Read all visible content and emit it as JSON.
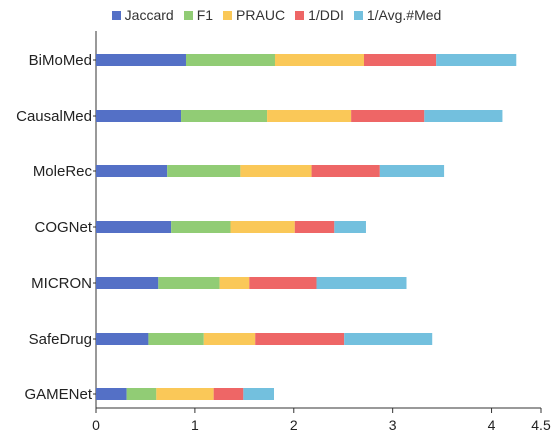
{
  "chart_data": {
    "type": "bar",
    "orientation": "horizontal",
    "stacked": true,
    "categories": [
      "BiMoMed",
      "CausalMed",
      "MoleRec",
      "COGNet",
      "MICRON",
      "SafeDrug",
      "GAMENet"
    ],
    "series": [
      {
        "name": "Jaccard",
        "color": "#5470c6",
        "values": [
          0.91,
          0.86,
          0.72,
          0.76,
          0.63,
          0.53,
          0.31
        ]
      },
      {
        "name": "F1",
        "color": "#91cc75",
        "values": [
          0.9,
          0.87,
          0.74,
          0.6,
          0.62,
          0.56,
          0.3
        ]
      },
      {
        "name": "PRAUC",
        "color": "#fac858",
        "values": [
          0.9,
          0.85,
          0.72,
          0.65,
          0.3,
          0.52,
          0.58
        ]
      },
      {
        "name": "1/DDI",
        "color": "#ee6666",
        "values": [
          0.73,
          0.74,
          0.69,
          0.4,
          0.68,
          0.9,
          0.3
        ]
      },
      {
        "name": "1/Avg.#Med",
        "color": "#73c0de",
        "values": [
          0.81,
          0.79,
          0.65,
          0.32,
          0.91,
          0.89,
          0.31
        ]
      }
    ],
    "xlim": [
      0,
      4.5
    ],
    "xticks": [
      "0",
      "1",
      "2",
      "3",
      "4",
      "4.5"
    ],
    "title": "",
    "xlabel": "",
    "ylabel": "",
    "grid": false,
    "legend_position": "top"
  }
}
